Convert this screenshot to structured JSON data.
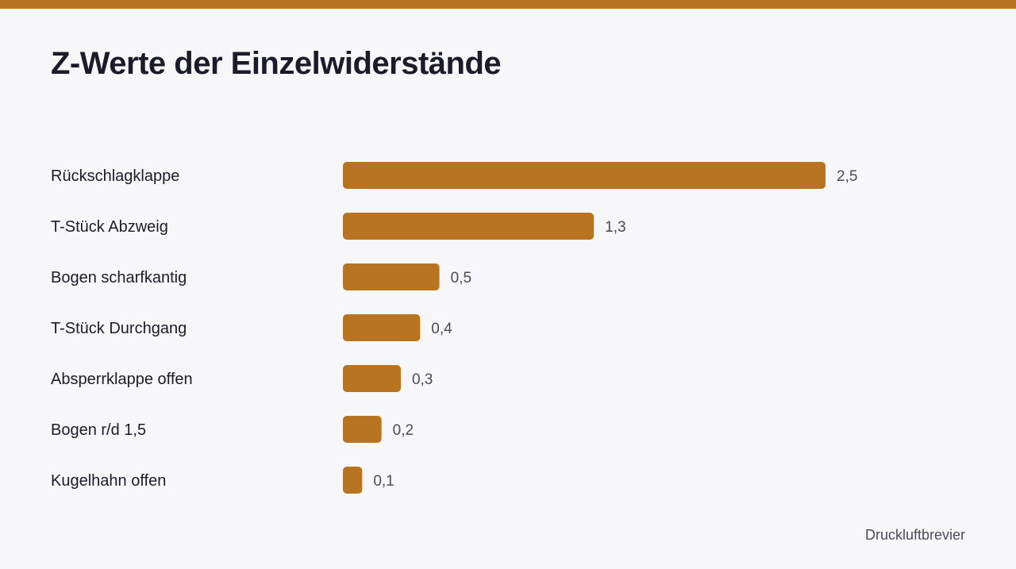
{
  "header": {
    "title": "Z-Werte der Einzelwiderstände"
  },
  "footer": {
    "source": "Druckluftbrevier"
  },
  "colors": {
    "accent": "#b87421",
    "background": "#f7f7f9",
    "text": "#1c1b2b",
    "muted": "#4a4a5a"
  },
  "chart_data": {
    "type": "bar",
    "orientation": "horizontal",
    "title": "Z-Werte der Einzelwiderstände",
    "categories": [
      "Rückschlagklappe",
      "T-Stück Abzweig",
      "Bogen scharfkantig",
      "T-Stück Durchgang",
      "Absperrklappe offen",
      "Bogen r/d 1,5",
      "Kugelhahn offen"
    ],
    "values": [
      2.5,
      1.3,
      0.5,
      0.4,
      0.3,
      0.2,
      0.1
    ],
    "value_labels": [
      "2,5",
      "1,3",
      "0,5",
      "0,4",
      "0,3",
      "0,2",
      "0,1"
    ],
    "xlim": [
      0,
      2.5
    ],
    "grid": false,
    "legend": "none"
  }
}
